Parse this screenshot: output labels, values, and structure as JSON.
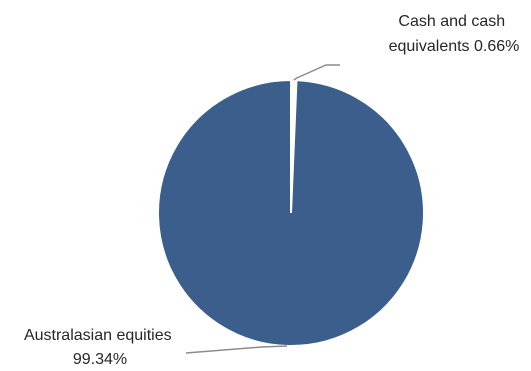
{
  "chart_data": {
    "type": "pie",
    "title": "",
    "slices": [
      {
        "label": "Cash and cash equivalents",
        "value": 0.66,
        "label_line1": "Cash and cash",
        "label_line2": "equivalents 0.66%",
        "color": "#ffffff"
      },
      {
        "label": "Australasian equities",
        "value": 99.34,
        "label_line1": "Australasian equities",
        "label_line2": "99.34%",
        "color": "#3b5e8c"
      }
    ],
    "unit": "%",
    "legend": "none",
    "label_style": "outside with leader lines"
  }
}
